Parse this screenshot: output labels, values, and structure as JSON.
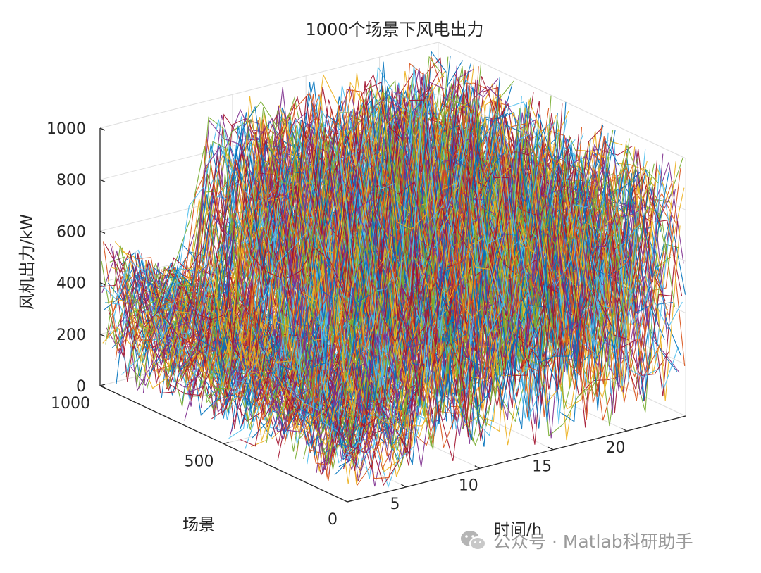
{
  "chart_data": {
    "type": "line",
    "title": "1000个场景下风电出力",
    "xlabel": "时间/h",
    "ylabel": "场景",
    "zlabel": "风机出力/kW",
    "x_range": [
      1,
      24
    ],
    "y_range": [
      0,
      1000
    ],
    "z_range": [
      0,
      1000
    ],
    "x_ticks": [
      5,
      10,
      15,
      20
    ],
    "y_ticks": [
      0,
      500,
      1000
    ],
    "z_ticks": [
      0,
      200,
      400,
      600,
      800,
      1000
    ],
    "scenario_count": 1000,
    "grid": true,
    "series_colors": [
      "#0072BD",
      "#D95319",
      "#EDB120",
      "#7E2F8E",
      "#77AC30",
      "#4DBEEE",
      "#A2142F"
    ],
    "typical_profile": [
      {
        "hour": 1,
        "low": 0,
        "high": 600
      },
      {
        "hour": 2,
        "low": 0,
        "high": 560
      },
      {
        "hour": 3,
        "low": 0,
        "high": 500
      },
      {
        "hour": 4,
        "low": 0,
        "high": 460
      },
      {
        "hour": 5,
        "low": 0,
        "high": 450
      },
      {
        "hour": 6,
        "low": 0,
        "high": 500
      },
      {
        "hour": 7,
        "low": 0,
        "high": 700
      },
      {
        "hour": 8,
        "low": 0,
        "high": 1000
      },
      {
        "hour": 9,
        "low": 0,
        "high": 1000
      },
      {
        "hour": 10,
        "low": 0,
        "high": 1000
      },
      {
        "hour": 11,
        "low": 0,
        "high": 1000
      },
      {
        "hour": 12,
        "low": 0,
        "high": 1000
      },
      {
        "hour": 13,
        "low": 0,
        "high": 1000
      },
      {
        "hour": 14,
        "low": 0,
        "high": 1000
      },
      {
        "hour": 15,
        "low": 0,
        "high": 1000
      },
      {
        "hour": 16,
        "low": 0,
        "high": 1000
      },
      {
        "hour": 17,
        "low": 0,
        "high": 1000
      },
      {
        "hour": 18,
        "low": 0,
        "high": 1000
      },
      {
        "hour": 19,
        "low": 0,
        "high": 1000
      },
      {
        "hour": 20,
        "low": 0,
        "high": 1000
      },
      {
        "hour": 21,
        "low": 0,
        "high": 1000
      },
      {
        "hour": 22,
        "low": 0,
        "high": 1000
      },
      {
        "hour": 23,
        "low": 0,
        "high": 1000
      },
      {
        "hour": 24,
        "low": 0,
        "high": 1000
      }
    ]
  },
  "watermark": {
    "icon": "wechat-icon",
    "text": "公众号 · Matlab科研助手"
  }
}
